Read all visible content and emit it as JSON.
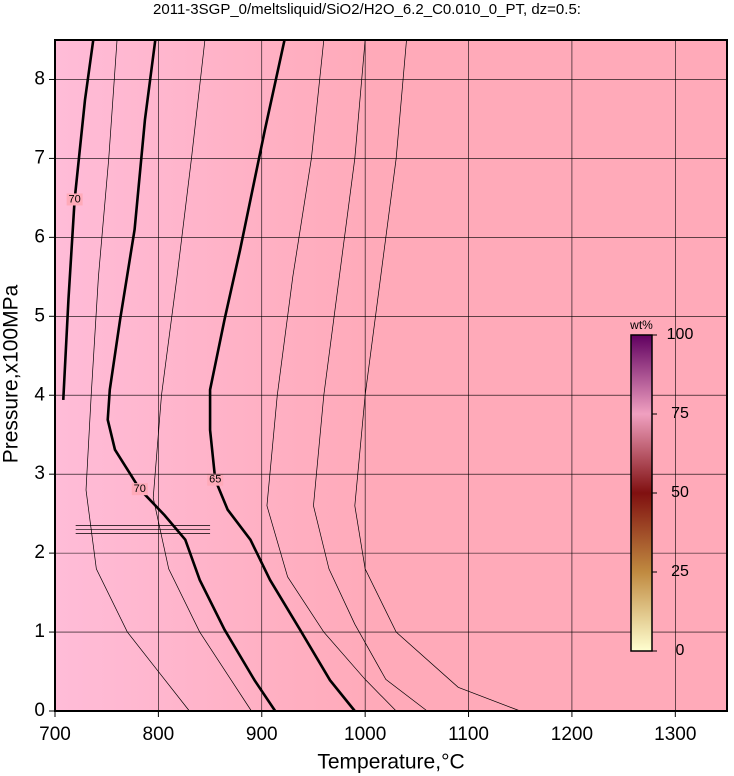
{
  "chart_data": {
    "type": "contour",
    "title": "2011-3SGP_0/meltsliquid/SiO2/H2O_6.2_C0.010_0_PT, dz=0.5:",
    "x_label": "Temperature,°C",
    "y_label": "Pressure,x100MPa",
    "xlim": [
      700,
      1350
    ],
    "ylim": [
      0,
      8.5
    ],
    "xticks": [
      700,
      800,
      900,
      1000,
      1100,
      1200,
      1300
    ],
    "yticks": [
      0,
      1,
      2,
      3,
      4,
      5,
      6,
      7,
      8
    ],
    "grid": true,
    "background": "#ffaab9",
    "contours": [
      {
        "level": 70,
        "x": [
          737,
          729,
          719,
          713,
          708
        ],
        "y": [
          8.5,
          7.74,
          6.48,
          5.21,
          3.94
        ]
      },
      {
        "level": 70,
        "x": [
          797,
          787,
          777,
          763,
          753,
          751,
          758,
          782,
          806,
          826,
          840,
          864,
          893,
          913
        ],
        "y": [
          8.5,
          7.49,
          6.1,
          4.96,
          4.07,
          3.69,
          3.31,
          2.81,
          2.48,
          2.17,
          1.66,
          1.03,
          0.39,
          0
        ]
      },
      {
        "level": 65,
        "x": [
          922,
          903,
          879,
          864,
          850,
          850,
          855,
          867,
          889,
          908,
          937,
          966,
          990
        ],
        "y": [
          8.5,
          7.36,
          5.84,
          4.96,
          4.07,
          3.56,
          2.93,
          2.55,
          2.17,
          1.66,
          1.03,
          0.39,
          0
        ]
      }
    ],
    "thin_contours": [
      {
        "x": [
          760,
          752,
          742,
          735,
          730,
          740,
          770,
          800,
          830
        ],
        "y": [
          8.5,
          7,
          5.5,
          4,
          2.8,
          1.8,
          1,
          0.5,
          0
        ]
      },
      {
        "x": [
          845,
          832,
          818,
          803,
          795,
          810,
          840,
          870,
          890
        ],
        "y": [
          8.5,
          7,
          5.5,
          4,
          2.7,
          1.8,
          1,
          0.4,
          0
        ]
      },
      {
        "x": [
          960,
          948,
          930,
          915,
          905,
          925,
          960,
          1000,
          1030
        ],
        "y": [
          8.5,
          7,
          5.5,
          4,
          2.6,
          1.7,
          1,
          0.4,
          0
        ]
      },
      {
        "x": [
          1000,
          990,
          975,
          960,
          950,
          965,
          990,
          1020,
          1060
        ],
        "y": [
          8.5,
          7,
          5.5,
          4,
          2.6,
          1.8,
          1.1,
          0.4,
          0
        ]
      },
      {
        "x": [
          1040,
          1030,
          1015,
          1000,
          990,
          1000,
          1030,
          1090,
          1150
        ],
        "y": [
          8.5,
          7,
          5.5,
          4,
          2.6,
          1.8,
          1.0,
          0.3,
          0
        ]
      },
      {
        "x": [
          720,
          850
        ],
        "y": [
          2.3,
          2.3
        ]
      },
      {
        "x": [
          720,
          850
        ],
        "y": [
          2.25,
          2.25
        ]
      },
      {
        "x": [
          720,
          850
        ],
        "y": [
          2.35,
          2.35
        ]
      }
    ],
    "colorbar": {
      "label": "wt%",
      "lim": [
        0,
        100
      ],
      "ticks": [
        0,
        25,
        50,
        75,
        100
      ],
      "colors": [
        "#ffffd0",
        "#c08a40",
        "#801010",
        "#f0a0c0",
        "#600060"
      ]
    }
  }
}
